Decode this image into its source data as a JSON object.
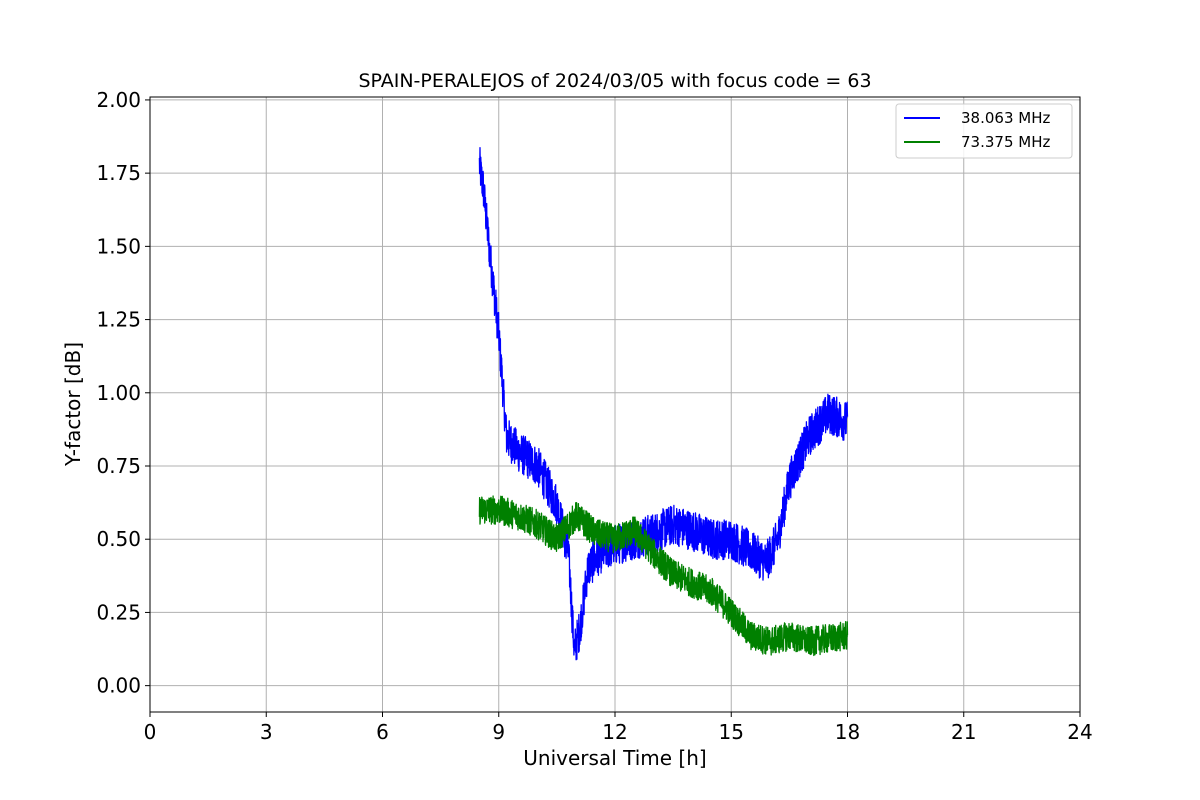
{
  "chart_data": {
    "type": "line",
    "title": "SPAIN-PERALEJOS of 2024/03/05 with focus code = 63",
    "xlabel": "Universal Time [h]",
    "ylabel": "Y-factor [dB]",
    "xlim": [
      0,
      24
    ],
    "ylim": [
      -0.09,
      2.01
    ],
    "xticks": [
      0,
      3,
      6,
      9,
      12,
      15,
      18,
      21,
      24
    ],
    "xtick_labels": [
      "0",
      "3",
      "6",
      "9",
      "12",
      "15",
      "18",
      "21",
      "24"
    ],
    "yticks": [
      0.0,
      0.25,
      0.5,
      0.75,
      1.0,
      1.25,
      1.5,
      1.75,
      2.0
    ],
    "ytick_labels": [
      "0.00",
      "0.25",
      "0.50",
      "0.75",
      "1.00",
      "1.25",
      "1.50",
      "1.75",
      "2.00"
    ],
    "grid": true,
    "legend_position": "top-right",
    "series": [
      {
        "name": "38.063 MHz",
        "color": "#0000ff",
        "noise": 0.07,
        "x": [
          8.5,
          8.6,
          8.75,
          9.0,
          9.2,
          9.5,
          10.0,
          10.5,
          10.8,
          10.95,
          11.1,
          11.3,
          11.6,
          12.0,
          12.5,
          13.0,
          13.5,
          14.0,
          14.5,
          15.0,
          15.5,
          15.9,
          16.2,
          16.5,
          17.0,
          17.5,
          18.0
        ],
        "y": [
          1.78,
          1.7,
          1.5,
          1.2,
          0.85,
          0.8,
          0.75,
          0.62,
          0.45,
          0.12,
          0.2,
          0.4,
          0.45,
          0.48,
          0.5,
          0.52,
          0.55,
          0.53,
          0.5,
          0.5,
          0.46,
          0.42,
          0.5,
          0.7,
          0.85,
          0.93,
          0.9
        ]
      },
      {
        "name": "73.375 MHz",
        "color": "#008000",
        "noise": 0.05,
        "x": [
          8.5,
          9.0,
          9.5,
          10.0,
          10.5,
          11.0,
          11.5,
          12.0,
          12.5,
          13.0,
          13.5,
          14.0,
          14.5,
          15.0,
          15.5,
          16.0,
          16.5,
          17.0,
          17.5,
          18.0
        ],
        "y": [
          0.6,
          0.6,
          0.58,
          0.55,
          0.5,
          0.58,
          0.52,
          0.5,
          0.53,
          0.45,
          0.38,
          0.35,
          0.32,
          0.25,
          0.17,
          0.15,
          0.17,
          0.15,
          0.16,
          0.17
        ]
      }
    ]
  }
}
